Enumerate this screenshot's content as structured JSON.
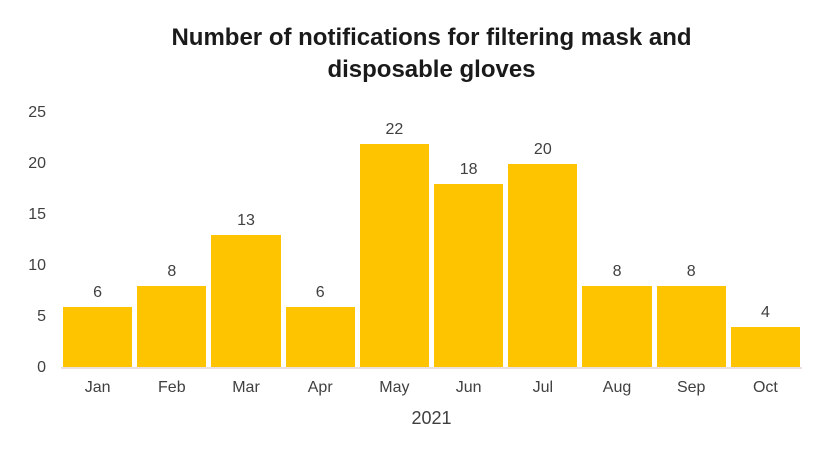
{
  "chart_data": {
    "type": "bar",
    "title": "Number of notifications for filtering mask and disposable gloves",
    "categories": [
      "Jan",
      "Feb",
      "Mar",
      "Apr",
      "May",
      "Jun",
      "Jul",
      "Aug",
      "Sep",
      "Oct"
    ],
    "values": [
      6,
      8,
      13,
      6,
      22,
      18,
      20,
      8,
      8,
      4
    ],
    "data_labels_shown": true,
    "xlabel": "2021",
    "ylabel": "",
    "ylim": [
      0,
      25
    ],
    "yticks": [
      0,
      5,
      10,
      15,
      20,
      25
    ],
    "grid": false,
    "legend": "none",
    "colors": {
      "bar": "#FFC400",
      "axis_line": "#EBDFE0",
      "labels": "#404040",
      "title": "#1A1A1A",
      "background": "#FFFFFF"
    }
  }
}
